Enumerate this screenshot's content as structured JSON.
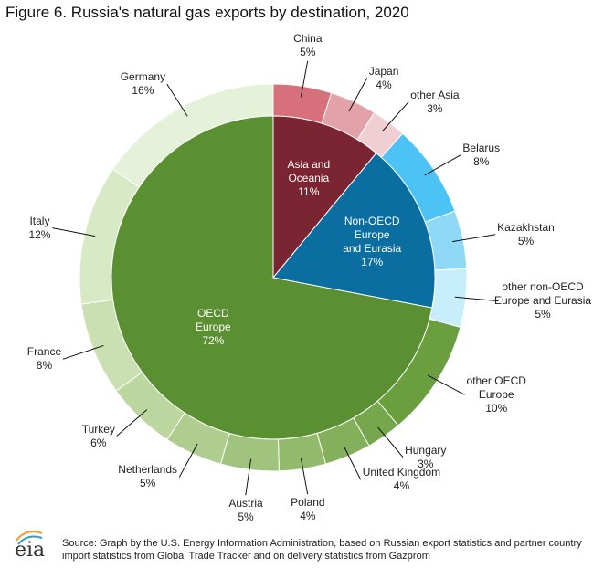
{
  "chart_data": {
    "type": "sunburst",
    "title": "Figure 6. Russia's natural gas exports by destination, 2020",
    "inner": {
      "categories": [
        "Asia and\nOceania",
        "Non-OECD\nEurope\nand Eurasia",
        "OECD\nEurope"
      ],
      "values": [
        11,
        17,
        72
      ],
      "value_labels": [
        "11%",
        "17%",
        "72%"
      ],
      "colors": [
        "#7b2432",
        "#0a6fa0",
        "#5a8f32"
      ]
    },
    "outer": {
      "categories": [
        "China",
        "Japan",
        "other Asia",
        "Belarus",
        "Kazakhstan",
        "other non-OECD\nEurope and Eurasia",
        "other OECD\nEurope",
        "Hungary",
        "United Kingdom",
        "Poland",
        "Austria",
        "Netherlands",
        "Turkey",
        "France",
        "Italy",
        "Germany"
      ],
      "values": [
        5,
        4,
        3,
        8,
        5,
        5,
        10,
        3,
        4,
        4,
        5,
        5,
        6,
        8,
        12,
        16
      ],
      "value_labels": [
        "5%",
        "4%",
        "3%",
        "8%",
        "5%",
        "5%",
        "10%",
        "3%",
        "4%",
        "4%",
        "5%",
        "5%",
        "6%",
        "8%",
        "12%",
        "16%"
      ],
      "colors": [
        "#d6707a",
        "#e3a2a8",
        "#f0cfd3",
        "#4dc3f5",
        "#8fd9f8",
        "#c8edfb",
        "#6a9e3f",
        "#76a74c",
        "#84b05c",
        "#92ba6c",
        "#a0c47d",
        "#aecd8e",
        "#bcd6a0",
        "#cadfb2",
        "#d8e9c5",
        "#e6f1d9"
      ]
    },
    "source": "Source: Graph by the U.S. Energy Information Administration, based on Russian export statistics and partner country import statistics from Global Trade Tracker and on delivery statistics from Gazprom",
    "logo": "eia"
  }
}
